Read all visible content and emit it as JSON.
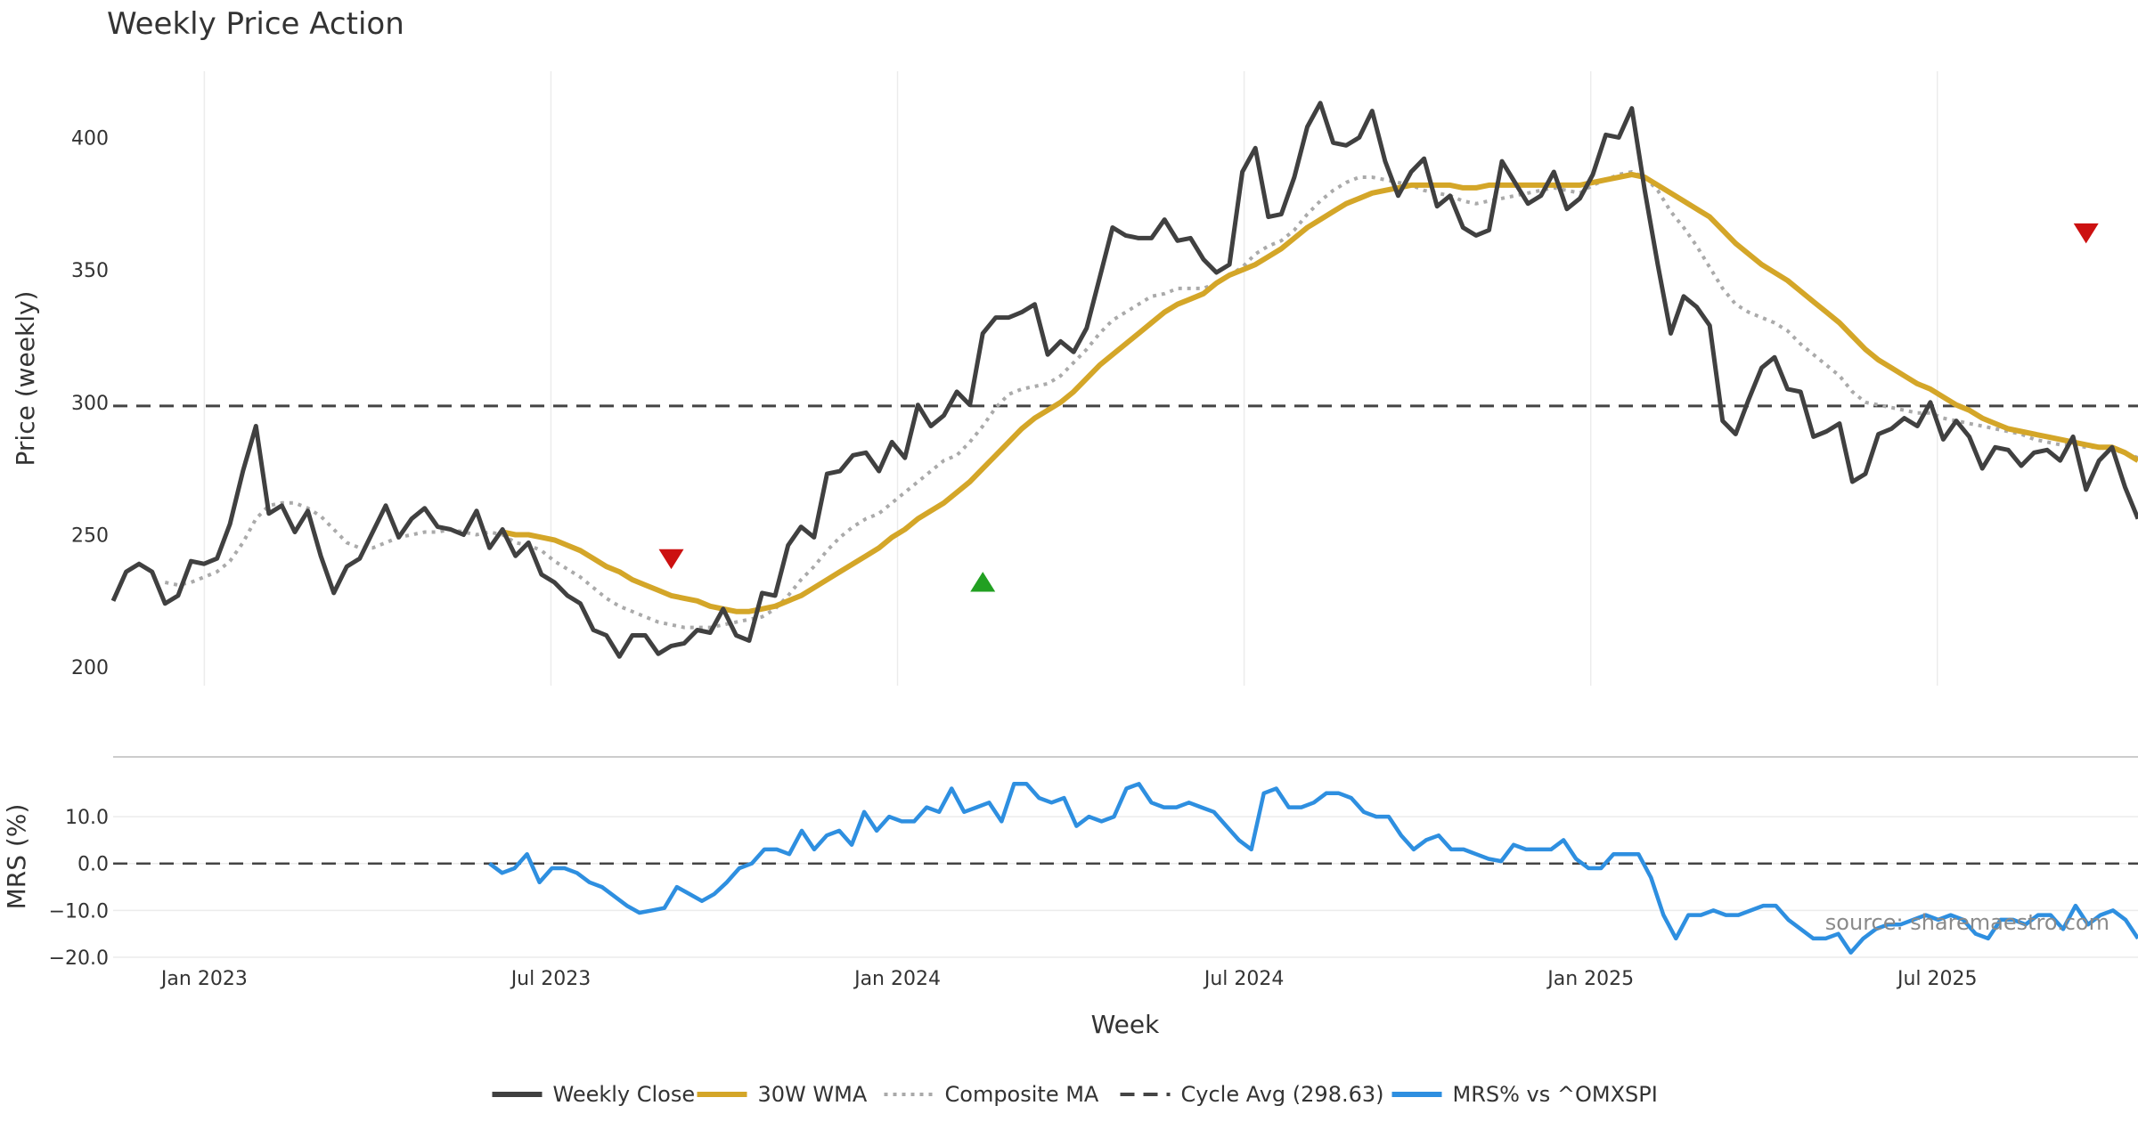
{
  "chart_data": {
    "type": "line",
    "title": "Weekly Price Action",
    "xlabel": "Week",
    "x_ticks": [
      "Jan 2023",
      "Jul 2023",
      "Jan 2024",
      "Jul 2024",
      "Jan 2025",
      "Jul 2025"
    ],
    "price_panel": {
      "ylabel": "Price (weekly)",
      "ylim": [
        193,
        425
      ],
      "yticks": [
        "200",
        "250",
        "300",
        "350",
        "400"
      ],
      "ytick_values": [
        200,
        250,
        300,
        350,
        400
      ],
      "cycle_avg": 298.63,
      "weekly_close": [
        225,
        236,
        239,
        236,
        224,
        227,
        240,
        239,
        241,
        254,
        274,
        291,
        258,
        261,
        251,
        259,
        242,
        228,
        238,
        241,
        251,
        261,
        249,
        256,
        260,
        253,
        252,
        250,
        259,
        245,
        252,
        242,
        247,
        235,
        232,
        227,
        224,
        214,
        212,
        204,
        212,
        212,
        205,
        208,
        209,
        214,
        213,
        222,
        212,
        210,
        228,
        227,
        246,
        253,
        249,
        273,
        274,
        280,
        281,
        274,
        285,
        279,
        299,
        291,
        295,
        304,
        299,
        326,
        332,
        332,
        334,
        337,
        318,
        323,
        319,
        328,
        347,
        366,
        363,
        362,
        362,
        369,
        361,
        362,
        354,
        349,
        352,
        387,
        396,
        370,
        371,
        385,
        404,
        413,
        398,
        397,
        400,
        410,
        391,
        378,
        387,
        392,
        374,
        378,
        366,
        363,
        365,
        391,
        383,
        375,
        378,
        387,
        373,
        377,
        386,
        401,
        400,
        411,
        380,
        352,
        326,
        340,
        336,
        329,
        293,
        288,
        301,
        313,
        317,
        305,
        304,
        287,
        289,
        292,
        270,
        273,
        288,
        290,
        294,
        291,
        300,
        286,
        293,
        287,
        275,
        283,
        282,
        276,
        281,
        282,
        278,
        287,
        267,
        278,
        283,
        268,
        256
      ],
      "wma_30": [
        null,
        null,
        null,
        null,
        null,
        null,
        null,
        null,
        null,
        null,
        null,
        null,
        null,
        null,
        null,
        null,
        null,
        null,
        null,
        null,
        null,
        null,
        null,
        null,
        null,
        null,
        null,
        null,
        null,
        null,
        251,
        250,
        250,
        249,
        248,
        246,
        244,
        241,
        238,
        236,
        233,
        231,
        229,
        227,
        226,
        225,
        223,
        222,
        221,
        221,
        222,
        223,
        225,
        227,
        230,
        233,
        236,
        239,
        242,
        245,
        249,
        252,
        256,
        259,
        262,
        266,
        270,
        275,
        280,
        285,
        290,
        294,
        297,
        300,
        304,
        309,
        314,
        318,
        322,
        326,
        330,
        334,
        337,
        339,
        341,
        345,
        348,
        350,
        352,
        355,
        358,
        362,
        366,
        369,
        372,
        375,
        377,
        379,
        380,
        381,
        382,
        382,
        382,
        382,
        381,
        381,
        382,
        382,
        382,
        382,
        382,
        382,
        382,
        382,
        383,
        384,
        385,
        386,
        385,
        382,
        379,
        376,
        373,
        370,
        365,
        360,
        356,
        352,
        349,
        346,
        342,
        338,
        334,
        330,
        325,
        320,
        316,
        313,
        310,
        307,
        305,
        302,
        299,
        297,
        294,
        292,
        290,
        289,
        288,
        287,
        286,
        285,
        284,
        283,
        283,
        281,
        278
      ],
      "composite_ma": [
        null,
        null,
        null,
        null,
        232,
        231,
        232,
        234,
        236,
        240,
        247,
        256,
        261,
        262,
        262,
        260,
        257,
        252,
        247,
        245,
        245,
        247,
        249,
        250,
        251,
        251,
        252,
        251,
        250,
        251,
        250,
        247,
        246,
        244,
        240,
        237,
        234,
        230,
        226,
        223,
        221,
        219,
        217,
        216,
        215,
        215,
        215,
        216,
        217,
        218,
        219,
        222,
        227,
        233,
        238,
        244,
        249,
        253,
        256,
        258,
        262,
        266,
        270,
        274,
        278,
        280,
        285,
        291,
        298,
        303,
        305,
        306,
        307,
        310,
        315,
        320,
        326,
        331,
        334,
        337,
        340,
        341,
        343,
        343,
        343,
        345,
        348,
        351,
        356,
        359,
        361,
        365,
        371,
        376,
        380,
        383,
        385,
        385,
        384,
        383,
        382,
        380,
        379,
        378,
        376,
        375,
        376,
        377,
        378,
        379,
        380,
        381,
        380,
        379,
        382,
        384,
        386,
        387,
        385,
        380,
        372,
        366,
        359,
        351,
        343,
        337,
        334,
        332,
        330,
        327,
        322,
        318,
        314,
        310,
        304,
        300,
        299,
        298,
        297,
        296,
        296,
        294,
        293,
        292,
        291,
        290,
        289,
        288,
        286,
        285,
        284,
        284,
        283,
        283,
        282,
        281,
        279
      ],
      "markers": [
        {
          "type": "sell",
          "color": "#cc1111",
          "week": 43,
          "price": 241
        },
        {
          "type": "buy",
          "color": "#22a022",
          "week": 67,
          "price": 232
        },
        {
          "type": "sell",
          "color": "#cc1111",
          "week": 152,
          "price": 364
        }
      ]
    },
    "mrs_panel": {
      "ylabel": "MRS (%)",
      "ylim": [
        -20,
        18
      ],
      "yticks": [
        "10.0",
        "0.0",
        "−10.0",
        "−20.0"
      ],
      "ytick_values": [
        10,
        0,
        -10,
        -20
      ],
      "series": [
        0,
        -2,
        -1,
        2,
        -4,
        -1,
        -1,
        -2,
        -4,
        -5,
        -7,
        -9,
        -10.5,
        -10,
        -9.5,
        -5,
        -6.5,
        -8,
        -6.5,
        -4,
        -1,
        0,
        3,
        3,
        2,
        7,
        3,
        6,
        7,
        4,
        11,
        7,
        10,
        9,
        9,
        12,
        11,
        16,
        11,
        12,
        13,
        9,
        17,
        17,
        14,
        13,
        14,
        8,
        10,
        9,
        10,
        16,
        17,
        13,
        12,
        12,
        13,
        12,
        11,
        8,
        5,
        3,
        15,
        16,
        12,
        12,
        13,
        15,
        15,
        14,
        11,
        10,
        10,
        6,
        3,
        5,
        6,
        3,
        3,
        2,
        1,
        0.5,
        4,
        3,
        3,
        3,
        5,
        1,
        -1,
        -1,
        2,
        2,
        2,
        -3,
        -11,
        -16,
        -11,
        -11,
        -10,
        -11,
        -11,
        -10,
        -9,
        -9,
        -12,
        -14,
        -16,
        -16,
        -15,
        -19,
        -16,
        -14,
        -13,
        -13,
        -12,
        -11,
        -12,
        -11,
        -12,
        -15,
        -16,
        -12,
        -12,
        -13,
        -11,
        -11,
        -14,
        -9,
        -13,
        -11,
        -10,
        -12,
        -16
      ]
    },
    "legend": [
      {
        "label": "Weekly Close",
        "color": "#404040",
        "style": "solid"
      },
      {
        "label": "30W WMA",
        "color": "#d4a628",
        "style": "solid"
      },
      {
        "label": "Composite MA",
        "color": "#aaaaaa",
        "style": "dotted"
      },
      {
        "label": "Cycle Avg (298.63)",
        "color": "#444444",
        "style": "dashed"
      },
      {
        "label": "MRS% vs ^OMXSPI",
        "color": "#2e8fe0",
        "style": "solid"
      }
    ],
    "source_text": "source: sharemaestro.com"
  }
}
